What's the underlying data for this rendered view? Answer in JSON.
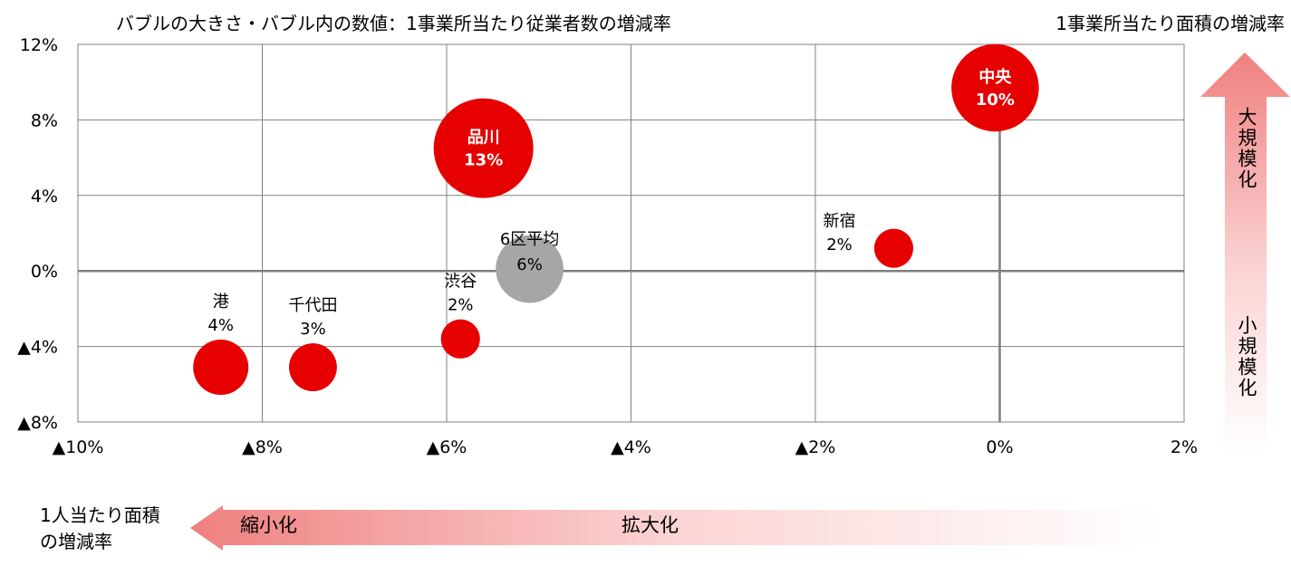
{
  "chart_data": {
    "type": "bubble",
    "title": "バブルの大きさ・バブル内の数値：1事業所当たり従業者数の増減率",
    "xlabel": "1人当たり面積の増減率",
    "xlabel_lines": [
      "1人当たり面積",
      "の増減率"
    ],
    "ylabel": "1事業所当たり面積の増減率",
    "xlim": [
      -10,
      2
    ],
    "ylim": [
      -8,
      12
    ],
    "x_ticks": [
      -10,
      -8,
      -6,
      -4,
      -2,
      0,
      2
    ],
    "y_ticks": [
      -8,
      -4,
      0,
      4,
      8,
      12
    ],
    "x_tick_labels": [
      "▲10%",
      "▲8%",
      "▲6%",
      "▲4%",
      "▲2%",
      "0%",
      "2%"
    ],
    "y_tick_labels": [
      "▲8%",
      "▲4%",
      "0%",
      "4%",
      "8%",
      "12%"
    ],
    "grid": true,
    "points": [
      {
        "name": "中央",
        "x": -0.05,
        "y": 9.7,
        "size": 10,
        "label": "10%",
        "color": "#e60000",
        "text_color": "#ffffff",
        "label_inside": true
      },
      {
        "name": "品川",
        "x": -5.6,
        "y": 6.5,
        "size": 13,
        "label": "13%",
        "color": "#e60000",
        "text_color": "#ffffff",
        "label_inside": true
      },
      {
        "name": "新宿",
        "x": -1.15,
        "y": 1.2,
        "size": 2,
        "label": "2%",
        "color": "#e60000",
        "text_color": "#000000",
        "label_inside": false
      },
      {
        "name": "6区平均",
        "x": -5.1,
        "y": 0.1,
        "size": 6,
        "label": "6%",
        "color": "#a6a6a6",
        "text_color": "#000000",
        "label_inside": true
      },
      {
        "name": "渋谷",
        "x": -5.85,
        "y": -3.6,
        "size": 2,
        "label": "2%",
        "color": "#e60000",
        "text_color": "#000000",
        "label_inside": false
      },
      {
        "name": "千代田",
        "x": -7.45,
        "y": -5.1,
        "size": 3,
        "label": "3%",
        "color": "#e60000",
        "text_color": "#000000",
        "label_inside": false
      },
      {
        "name": "港",
        "x": -8.45,
        "y": -5.1,
        "size": 4,
        "label": "4%",
        "color": "#e60000",
        "text_color": "#000000",
        "label_inside": false
      }
    ],
    "arrows": {
      "up_top": "大規模化",
      "up_bottom": "小規模化",
      "left_start": "縮小化",
      "left_end": "拡大化"
    },
    "colors": {
      "accent": "#e60000",
      "gray_bubble": "#a6a6a6",
      "arrow_strong": "#f08080",
      "grid": "#808080",
      "axis": "#7f7f7f"
    }
  }
}
